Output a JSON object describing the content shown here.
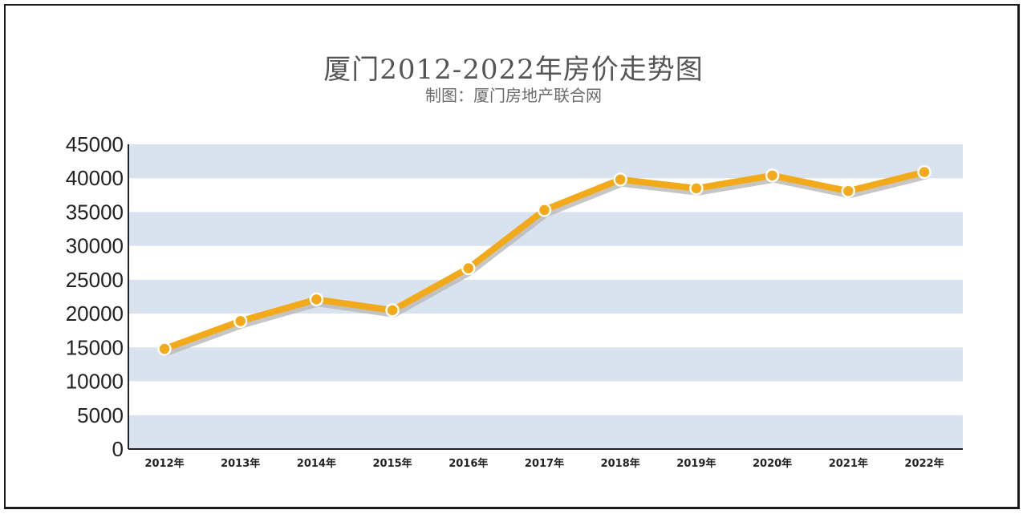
{
  "chart_data": {
    "type": "line",
    "title": "厦门2012-2022年房价走势图",
    "subtitle": "制图：厦门房地产联合网",
    "categories": [
      "2012年",
      "2013年",
      "2014年",
      "2015年",
      "2016年",
      "2017年",
      "2018年",
      "2019年",
      "2020年",
      "2021年",
      "2022年"
    ],
    "series": [
      {
        "values": [
          14800,
          18900,
          22100,
          20500,
          26700,
          35300,
          39800,
          38500,
          40400,
          38100,
          40900
        ]
      }
    ],
    "ylim": [
      0,
      45000
    ],
    "yticks": [
      0,
      5000,
      10000,
      15000,
      20000,
      25000,
      30000,
      35000,
      40000,
      45000
    ],
    "grid": "alternating horizontal bands",
    "colors": {
      "line": "#f2aa1a",
      "band": "#d9e3ef",
      "shadow": "#b8b8b8",
      "marker_edge": "#ffffff"
    }
  }
}
